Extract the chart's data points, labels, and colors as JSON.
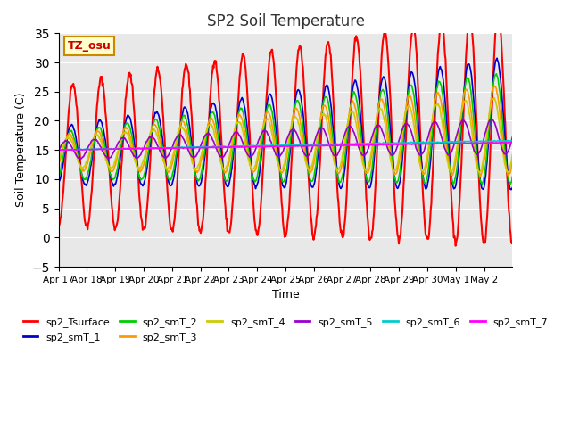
{
  "title": "SP2 Soil Temperature",
  "xlabel": "Time",
  "ylabel": "Soil Temperature (C)",
  "ylim": [
    -5,
    35
  ],
  "yticks": [
    -5,
    0,
    5,
    10,
    15,
    20,
    25,
    30,
    35
  ],
  "background_color": "#e8e8e8",
  "tz_label": "TZ_osu",
  "x_tick_labels": [
    "Apr 17",
    "Apr 18",
    "Apr 19",
    "Apr 20",
    "Apr 21",
    "Apr 22",
    "Apr 23",
    "Apr 24",
    "Apr 25",
    "Apr 26",
    "Apr 27",
    "Apr 28",
    "Apr 29",
    "Apr 30",
    "May 1",
    "May 2"
  ],
  "series_colors": {
    "sp2_Tsurface": "#ff0000",
    "sp2_smT_1": "#0000cc",
    "sp2_smT_2": "#00cc00",
    "sp2_smT_3": "#ff9900",
    "sp2_smT_4": "#cccc00",
    "sp2_smT_5": "#9900cc",
    "sp2_smT_6": "#00cccc",
    "sp2_smT_7": "#ff00ff"
  }
}
